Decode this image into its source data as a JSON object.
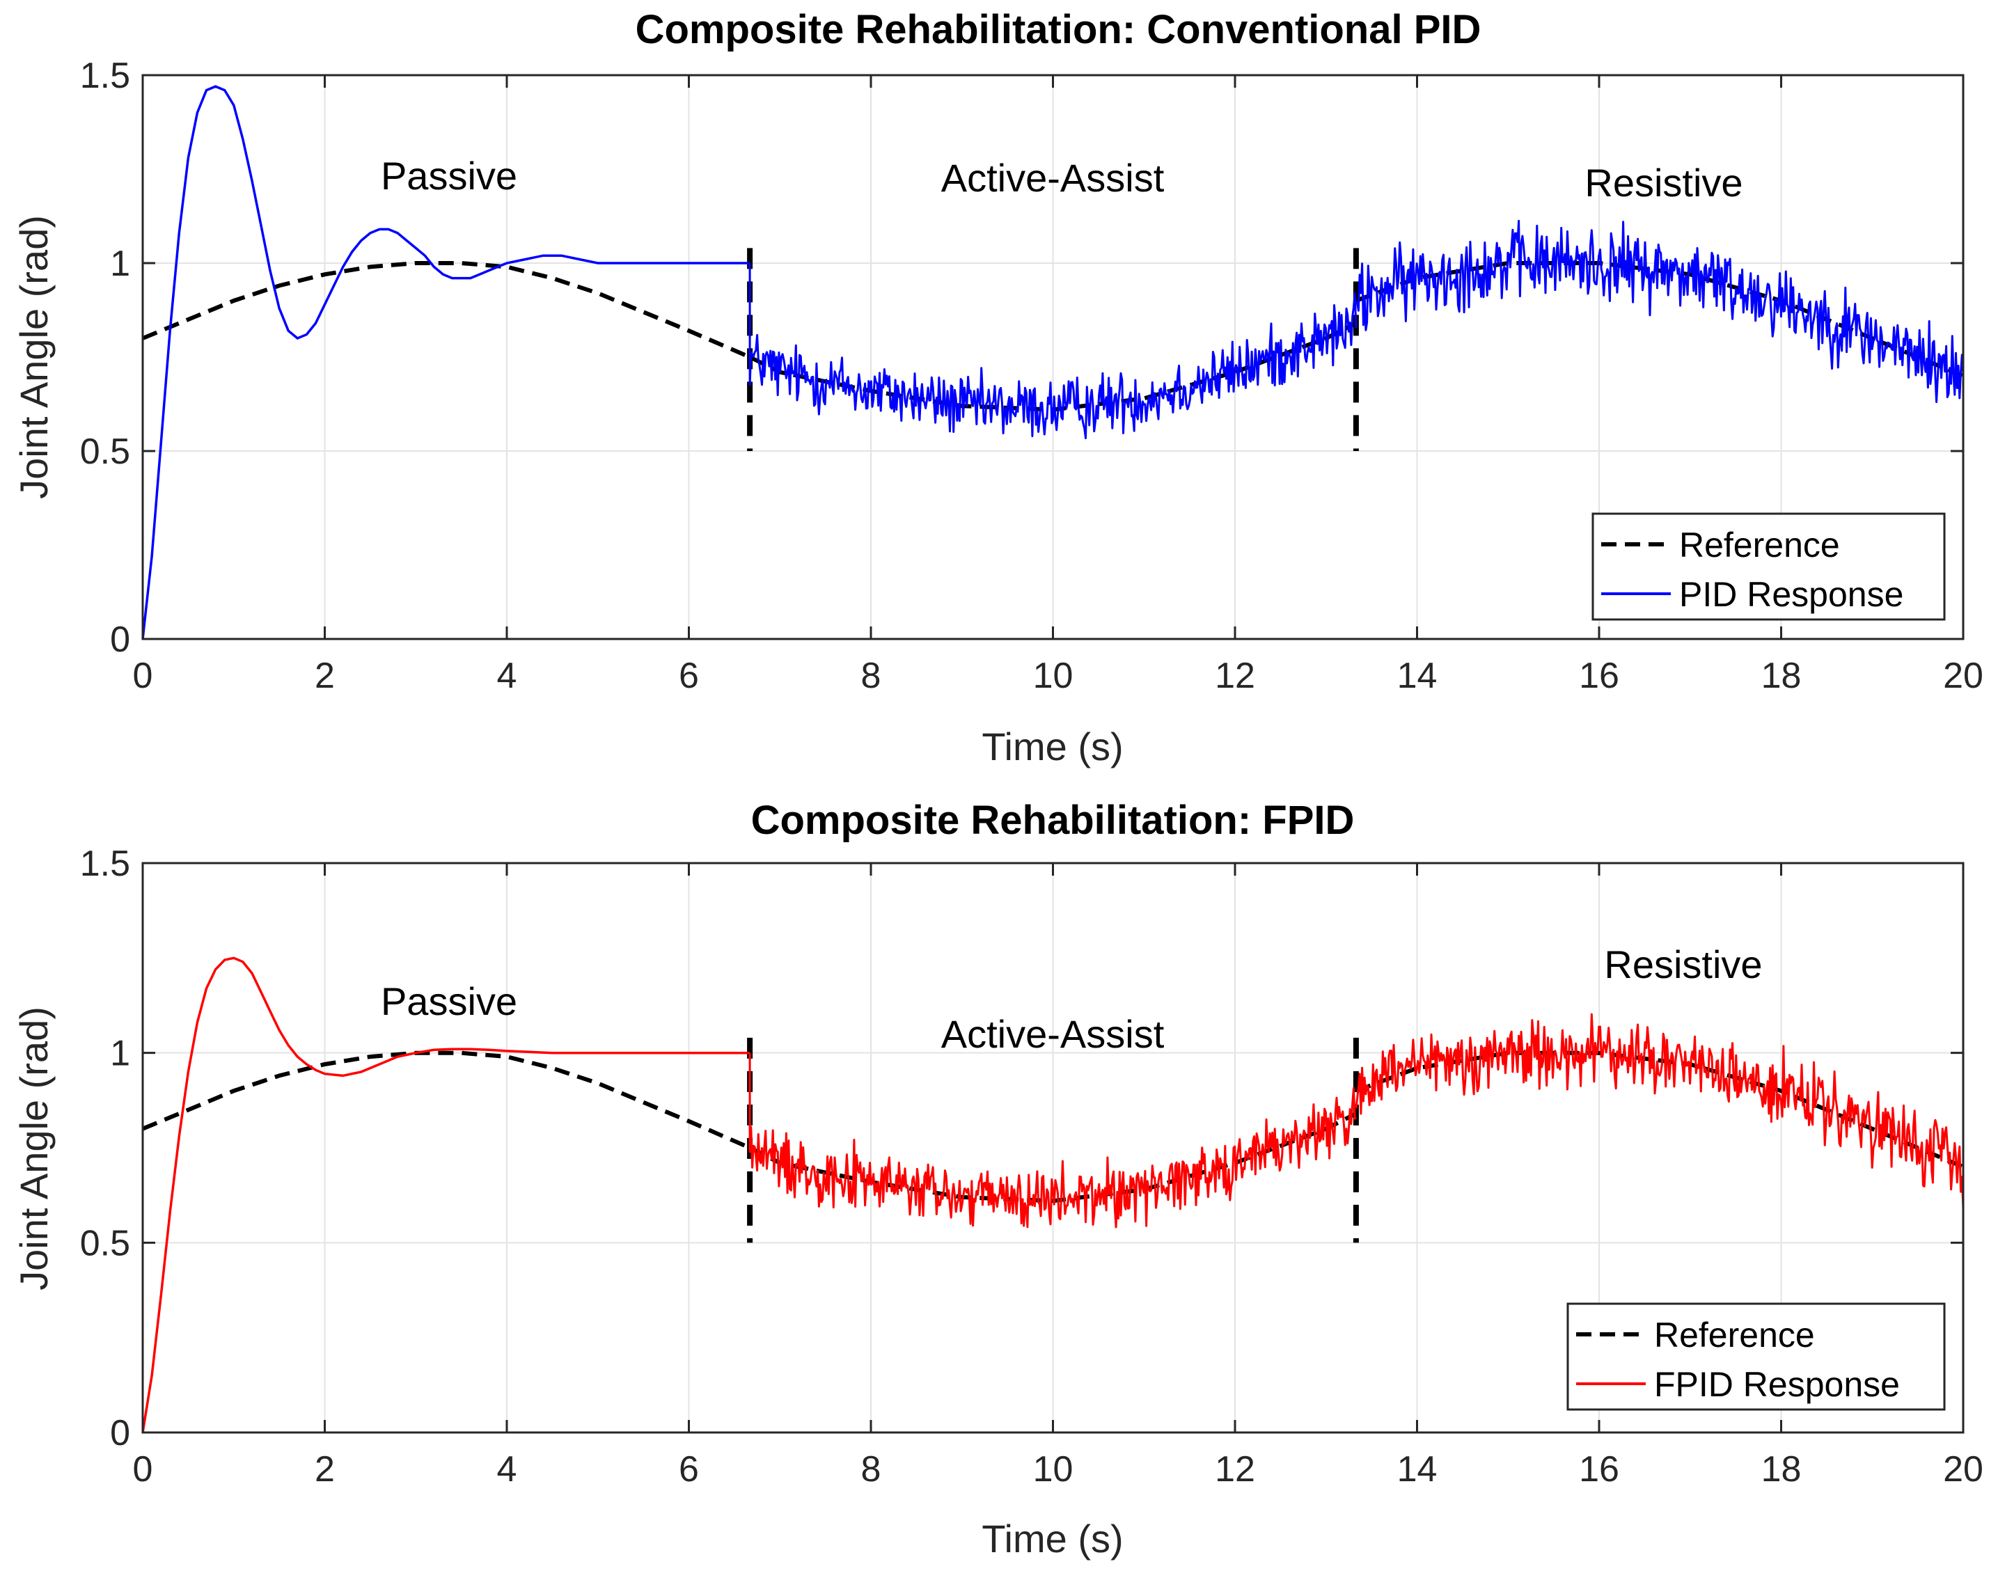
{
  "chart_data": [
    {
      "type": "line",
      "title": "Composite Rehabilitation: Conventional PID",
      "xlabel": "Time (s)",
      "ylabel": "Joint Angle (rad)",
      "xlim": [
        0,
        20
      ],
      "ylim": [
        0,
        1.5
      ],
      "xticks": [
        "0",
        "2",
        "4",
        "6",
        "8",
        "10",
        "12",
        "14",
        "16",
        "18",
        "20"
      ],
      "yticks": [
        "0",
        "0.5",
        "1",
        "1.5"
      ],
      "grid": true,
      "legend_position": "bottom-right",
      "phase_boundaries": [
        6.67,
        13.33
      ],
      "annotations": [
        {
          "text": "Passive",
          "x": 3.4,
          "y": 1.22
        },
        {
          "text": "Active-Assist",
          "x": 10.0,
          "y": 1.22
        },
        {
          "text": "Resistive",
          "x": 16.7,
          "y": 1.21
        }
      ],
      "series": [
        {
          "name": "Reference",
          "style": "dashed",
          "color": "#000000",
          "segments": [
            {
              "x": [
                0,
                0.5,
                1,
                1.5,
                2,
                2.5,
                3,
                3.5,
                4,
                4.5,
                5,
                5.5,
                6,
                6.67
              ],
              "y": [
                0.8,
                0.85,
                0.9,
                0.94,
                0.97,
                0.99,
                1.0,
                1.0,
                0.99,
                0.96,
                0.92,
                0.87,
                0.82,
                0.75
              ]
            },
            {
              "x": [
                6.67,
                7,
                8,
                9,
                10,
                11,
                12,
                13,
                13.33
              ],
              "y": [
                0.75,
                0.71,
                0.66,
                0.62,
                0.61,
                0.64,
                0.71,
                0.8,
                0.84
              ]
            },
            {
              "x": [
                13.33,
                14,
                15,
                16,
                17,
                18,
                19,
                20
              ],
              "y": [
                0.9,
                0.96,
                1.0,
                1.0,
                0.97,
                0.9,
                0.8,
                0.7
              ]
            }
          ]
        },
        {
          "name": "PID Response",
          "style": "solid",
          "color": "#0000FF",
          "x": [
            0,
            0.1,
            0.2,
            0.3,
            0.4,
            0.5,
            0.6,
            0.7,
            0.8,
            0.9,
            1.0,
            1.1,
            1.2,
            1.3,
            1.4,
            1.5,
            1.6,
            1.7,
            1.8,
            1.9,
            2.0,
            2.1,
            2.2,
            2.3,
            2.4,
            2.5,
            2.6,
            2.7,
            2.8,
            2.9,
            3.0,
            3.1,
            3.2,
            3.3,
            3.4,
            3.5,
            3.6,
            3.7,
            3.8,
            3.9,
            4.0,
            4.2,
            4.4,
            4.6,
            4.8,
            5.0,
            5.2,
            5.4,
            5.6,
            5.8,
            6.0,
            6.2,
            6.4,
            6.6,
            6.67
          ],
          "y": [
            0,
            0.22,
            0.52,
            0.82,
            1.08,
            1.28,
            1.4,
            1.46,
            1.47,
            1.46,
            1.42,
            1.33,
            1.22,
            1.1,
            0.98,
            0.88,
            0.82,
            0.8,
            0.81,
            0.84,
            0.89,
            0.94,
            0.99,
            1.03,
            1.06,
            1.08,
            1.09,
            1.09,
            1.08,
            1.06,
            1.04,
            1.02,
            0.99,
            0.97,
            0.96,
            0.96,
            0.96,
            0.97,
            0.98,
            0.99,
            1.0,
            1.01,
            1.02,
            1.02,
            1.01,
            1.0,
            1.0,
            1.0,
            1.0,
            1.0,
            1.0,
            1.0,
            1.0,
            1.0,
            1.0
          ],
          "noisy_segments": [
            {
              "x": [
                6.67,
                7,
                8,
                9,
                10,
                11,
                12,
                13,
                13.33
              ],
              "y": [
                0.75,
                0.71,
                0.66,
                0.62,
                0.61,
                0.64,
                0.71,
                0.8,
                0.84
              ],
              "noise_amplitude": 0.05
            },
            {
              "x": [
                13.33,
                14,
                15,
                16,
                17,
                18,
                19,
                20
              ],
              "y": [
                0.9,
                0.96,
                1.0,
                1.0,
                0.97,
                0.9,
                0.8,
                0.7
              ],
              "noise_amplitude": 0.06
            }
          ]
        }
      ]
    },
    {
      "type": "line",
      "title": "Composite Rehabilitation: FPID",
      "xlabel": "Time (s)",
      "ylabel": "Joint Angle (rad)",
      "xlim": [
        0,
        20
      ],
      "ylim": [
        0,
        1.5
      ],
      "xticks": [
        "0",
        "2",
        "4",
        "6",
        "8",
        "10",
        "12",
        "14",
        "16",
        "18",
        "20"
      ],
      "yticks": [
        "0",
        "0.5",
        "1",
        "1.5"
      ],
      "grid": true,
      "legend_position": "bottom-right",
      "phase_boundaries": [
        6.67,
        13.33
      ],
      "annotations": [
        {
          "text": "Passive",
          "x": 3.4,
          "y": 1.13
        },
        {
          "text": "Active-Assist",
          "x": 10.0,
          "y": 1.04
        },
        {
          "text": "Resistive",
          "x": 16.9,
          "y": 1.23
        }
      ],
      "series": [
        {
          "name": "Reference",
          "style": "dashed",
          "color": "#000000",
          "segments": [
            {
              "x": [
                0,
                0.5,
                1,
                1.5,
                2,
                2.5,
                3,
                3.5,
                4,
                4.5,
                5,
                5.5,
                6,
                6.67
              ],
              "y": [
                0.8,
                0.85,
                0.9,
                0.94,
                0.97,
                0.99,
                1.0,
                1.0,
                0.99,
                0.96,
                0.92,
                0.87,
                0.82,
                0.75
              ]
            },
            {
              "x": [
                6.67,
                7,
                8,
                9,
                10,
                11,
                12,
                13,
                13.33
              ],
              "y": [
                0.75,
                0.71,
                0.66,
                0.62,
                0.61,
                0.64,
                0.71,
                0.8,
                0.84
              ]
            },
            {
              "x": [
                13.33,
                14,
                15,
                16,
                17,
                18,
                19,
                20
              ],
              "y": [
                0.9,
                0.96,
                1.0,
                1.0,
                0.97,
                0.9,
                0.8,
                0.7
              ]
            }
          ]
        },
        {
          "name": "FPID Response",
          "style": "solid",
          "color": "#FF0000",
          "x": [
            0,
            0.1,
            0.2,
            0.3,
            0.4,
            0.5,
            0.6,
            0.7,
            0.8,
            0.9,
            1.0,
            1.1,
            1.2,
            1.3,
            1.4,
            1.5,
            1.6,
            1.7,
            1.8,
            1.9,
            2.0,
            2.2,
            2.4,
            2.6,
            2.8,
            3.0,
            3.2,
            3.4,
            3.6,
            3.8,
            4.0,
            4.5,
            5.0,
            5.5,
            6.0,
            6.5,
            6.67
          ],
          "y": [
            0,
            0.15,
            0.36,
            0.58,
            0.78,
            0.95,
            1.08,
            1.17,
            1.22,
            1.245,
            1.25,
            1.24,
            1.21,
            1.16,
            1.11,
            1.06,
            1.02,
            0.99,
            0.97,
            0.955,
            0.945,
            0.94,
            0.95,
            0.97,
            0.99,
            1.0,
            1.008,
            1.01,
            1.01,
            1.008,
            1.005,
            1.0,
            1.0,
            1.0,
            1.0,
            1.0,
            1.0
          ],
          "noisy_segments": [
            {
              "x": [
                6.67,
                7,
                8,
                9,
                10,
                11,
                12,
                13,
                13.33
              ],
              "y": [
                0.75,
                0.71,
                0.66,
                0.62,
                0.61,
                0.64,
                0.71,
                0.8,
                0.84
              ],
              "noise_amplitude": 0.05
            },
            {
              "x": [
                13.33,
                14,
                15,
                16,
                17,
                18,
                19,
                20
              ],
              "y": [
                0.9,
                0.96,
                1.0,
                1.0,
                0.97,
                0.9,
                0.8,
                0.7
              ],
              "noise_amplitude": 0.055
            }
          ]
        }
      ]
    }
  ]
}
